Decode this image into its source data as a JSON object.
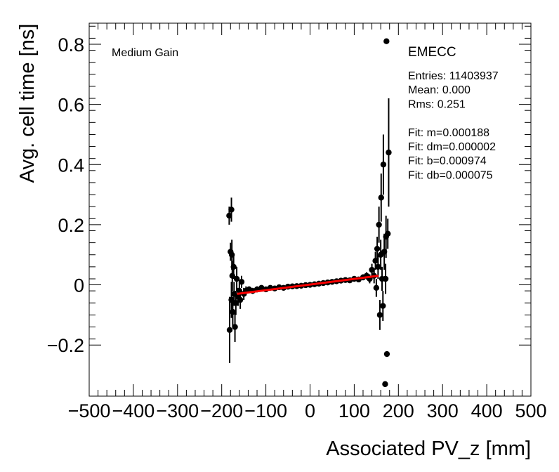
{
  "chart_data": {
    "type": "scatter",
    "title": "",
    "xlabel": "Associated PV_z [mm]",
    "ylabel": "Avg. cell time [ns]",
    "xlim": [
      -500,
      500
    ],
    "ylim": [
      -0.37,
      0.87
    ],
    "xticks": [
      -500,
      -400,
      -300,
      -200,
      -100,
      0,
      100,
      200,
      300,
      400,
      500
    ],
    "xtick_labels": [
      "−500",
      "−400",
      "−300",
      "−200",
      "−100",
      "0",
      "100",
      "200",
      "300",
      "400",
      "500"
    ],
    "yticks": [
      -0.2,
      0,
      0.2,
      0.4,
      0.6,
      0.8
    ],
    "ytick_labels": [
      "−0.2",
      "0",
      "0.2",
      "0.4",
      "0.6",
      "0.8"
    ],
    "gain_label": "Medium Gain",
    "stats": {
      "name": "EMECC",
      "lines": [
        "Entries: 11403937",
        "Mean: 0.000",
        "Rms: 0.251",
        "",
        "Fit: m=0.000188",
        "Fit: dm=0.000002",
        "Fit: b=0.000974",
        "Fit: db=0.000075"
      ]
    },
    "fit": {
      "m": 0.000188,
      "b": 0.000974,
      "x_range": [
        -165,
        155
      ],
      "color": "#ff0000"
    },
    "series": [
      {
        "name": "data",
        "points": [
          {
            "x": -183,
            "y": 0.23,
            "err": 0.03
          },
          {
            "x": -178,
            "y": 0.25,
            "err": 0.04
          },
          {
            "x": -180,
            "y": 0.11,
            "err": 0.03
          },
          {
            "x": -177,
            "y": 0.1,
            "err": 0.05
          },
          {
            "x": -182,
            "y": -0.15,
            "err": 0.11
          },
          {
            "x": -178,
            "y": -0.05,
            "err": 0.06
          },
          {
            "x": -176,
            "y": 0.03,
            "err": 0.05
          },
          {
            "x": -175,
            "y": -0.09,
            "err": 0.05
          },
          {
            "x": -173,
            "y": 0.06,
            "err": 0.04
          },
          {
            "x": -172,
            "y": -0.03,
            "err": 0.04
          },
          {
            "x": -170,
            "y": -0.14,
            "err": 0.05
          },
          {
            "x": -168,
            "y": -0.06,
            "err": 0.04
          },
          {
            "x": -166,
            "y": 0.02,
            "err": 0.04
          },
          {
            "x": -163,
            "y": -0.04,
            "err": 0.03
          },
          {
            "x": -160,
            "y": -0.02,
            "err": 0.03
          },
          {
            "x": -158,
            "y": -0.05,
            "err": 0.03
          },
          {
            "x": -155,
            "y": 0.01,
            "err": 0.02
          },
          {
            "x": -150,
            "y": -0.03,
            "err": 0.02
          },
          {
            "x": -145,
            "y": -0.02,
            "err": 0.015
          },
          {
            "x": -138,
            "y": -0.015,
            "err": 0.01
          },
          {
            "x": -130,
            "y": -0.02,
            "err": 0.01
          },
          {
            "x": -120,
            "y": -0.015,
            "err": 0.01
          },
          {
            "x": -110,
            "y": -0.01,
            "err": 0.005
          },
          {
            "x": -100,
            "y": -0.015,
            "err": 0.005
          },
          {
            "x": -90,
            "y": -0.01,
            "err": 0.005
          },
          {
            "x": -80,
            "y": -0.012,
            "err": 0.004
          },
          {
            "x": -70,
            "y": -0.008,
            "err": 0.004
          },
          {
            "x": -60,
            "y": -0.01,
            "err": 0.004
          },
          {
            "x": -50,
            "y": -0.006,
            "err": 0.004
          },
          {
            "x": -40,
            "y": -0.005,
            "err": 0.004
          },
          {
            "x": -30,
            "y": -0.004,
            "err": 0.004
          },
          {
            "x": -20,
            "y": -0.003,
            "err": 0.004
          },
          {
            "x": -10,
            "y": -0.001,
            "err": 0.004
          },
          {
            "x": 0,
            "y": 0.0,
            "err": 0.004
          },
          {
            "x": 10,
            "y": 0.002,
            "err": 0.004
          },
          {
            "x": 20,
            "y": 0.004,
            "err": 0.004
          },
          {
            "x": 30,
            "y": 0.006,
            "err": 0.004
          },
          {
            "x": 40,
            "y": 0.008,
            "err": 0.004
          },
          {
            "x": 50,
            "y": 0.01,
            "err": 0.004
          },
          {
            "x": 60,
            "y": 0.012,
            "err": 0.005
          },
          {
            "x": 70,
            "y": 0.014,
            "err": 0.005
          },
          {
            "x": 80,
            "y": 0.016,
            "err": 0.005
          },
          {
            "x": 90,
            "y": 0.015,
            "err": 0.006
          },
          {
            "x": 100,
            "y": 0.02,
            "err": 0.007
          },
          {
            "x": 110,
            "y": 0.018,
            "err": 0.008
          },
          {
            "x": 120,
            "y": 0.025,
            "err": 0.01
          },
          {
            "x": 128,
            "y": 0.03,
            "err": 0.012
          },
          {
            "x": 135,
            "y": 0.02,
            "err": 0.015
          },
          {
            "x": 140,
            "y": 0.05,
            "err": 0.02
          },
          {
            "x": 145,
            "y": 0.03,
            "err": 0.025
          },
          {
            "x": 148,
            "y": 0.08,
            "err": 0.03
          },
          {
            "x": 150,
            "y": -0.01,
            "err": 0.03
          },
          {
            "x": 152,
            "y": 0.12,
            "err": 0.04
          },
          {
            "x": 154,
            "y": 0.06,
            "err": 0.04
          },
          {
            "x": 156,
            "y": 0.2,
            "err": 0.06
          },
          {
            "x": 158,
            "y": -0.1,
            "err": 0.05
          },
          {
            "x": 160,
            "y": 0.1,
            "err": 0.05
          },
          {
            "x": 161,
            "y": 0.29,
            "err": 0.08
          },
          {
            "x": 163,
            "y": 0.02,
            "err": 0.04
          },
          {
            "x": 165,
            "y": -0.07,
            "err": 0.05
          },
          {
            "x": 166,
            "y": 0.4,
            "err": 0.1
          },
          {
            "x": 168,
            "y": 0.11,
            "err": 0.06
          },
          {
            "x": 170,
            "y": -0.33,
            "err": 0.0
          },
          {
            "x": 172,
            "y": 0.16,
            "err": 0.07
          },
          {
            "x": 173,
            "y": 0.81,
            "err": 0.0
          },
          {
            "x": 174,
            "y": -0.23,
            "err": 0.0
          },
          {
            "x": 176,
            "y": 0.17,
            "err": 0.05
          },
          {
            "x": 178,
            "y": 0.44,
            "err": 0.18
          },
          {
            "x": 171,
            "y": 0.02,
            "err": 0.05
          }
        ]
      }
    ]
  }
}
